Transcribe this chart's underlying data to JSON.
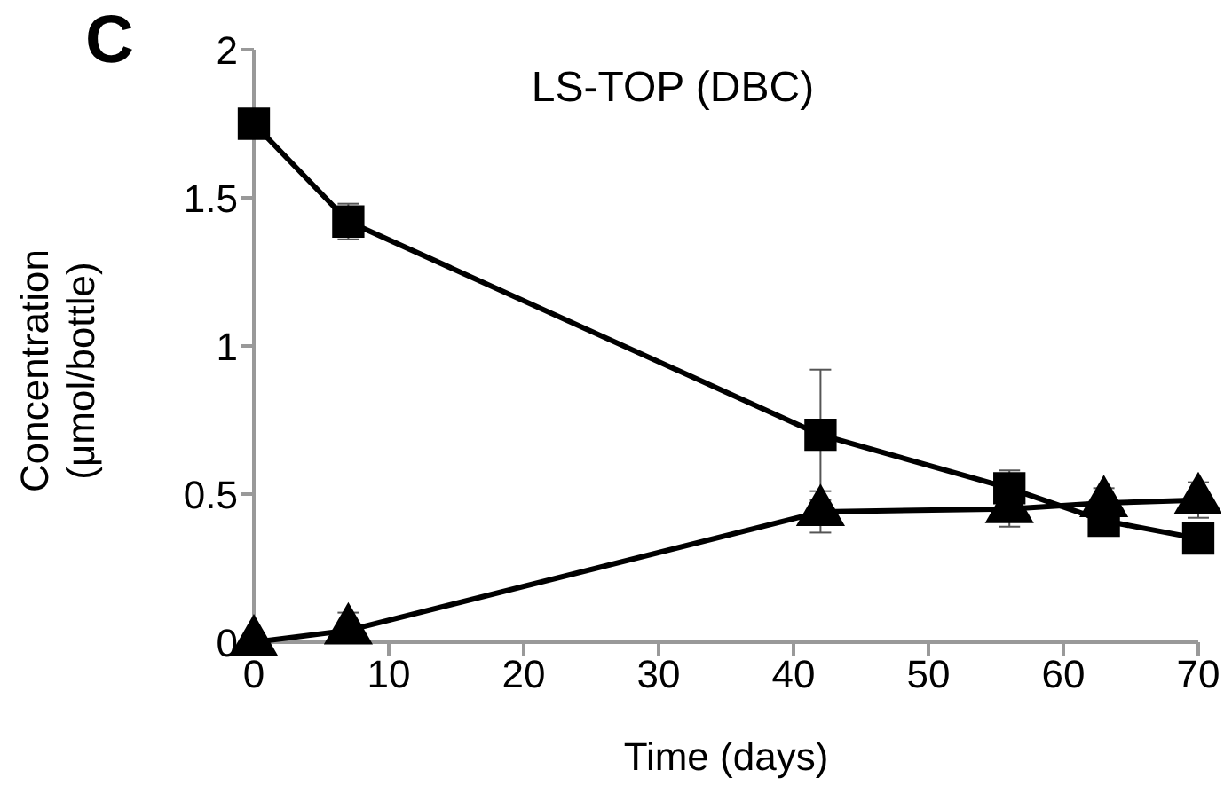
{
  "chart_data": {
    "type": "line",
    "title": "LS-TOP (DBC)",
    "xlabel": "Time (days)",
    "ylabel": "Concentration (μmol/bottle)",
    "annotations": [
      "C"
    ],
    "x": [
      0,
      7,
      42,
      56,
      63,
      70
    ],
    "series": [
      {
        "color": "#000000",
        "marker": "square",
        "values": [
          1.75,
          1.42,
          0.7,
          0.52,
          0.41,
          0.35
        ],
        "errors": [
          null,
          0.06,
          0.22,
          0.06,
          null,
          null
        ]
      },
      {
        "color": "#000000",
        "marker": "triangle",
        "values": [
          0,
          0.04,
          0.44,
          0.45,
          0.47,
          0.48
        ],
        "errors": [
          null,
          [
            0,
            0.1
          ],
          0.07,
          0.06,
          0.05,
          0.06
        ]
      }
    ],
    "xlim": [
      0,
      70
    ],
    "xticks": [
      0,
      10,
      20,
      30,
      40,
      50,
      60,
      70
    ],
    "ylim": [
      0,
      2
    ],
    "yticks": [
      0,
      0.5,
      1,
      1.5,
      2
    ],
    "grid": false,
    "legend": false,
    "line_style": "solid"
  }
}
